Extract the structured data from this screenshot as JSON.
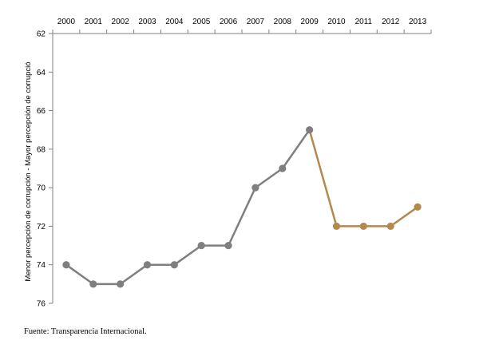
{
  "chart_data": {
    "type": "line",
    "x": [
      "2000",
      "2001",
      "2002",
      "2003",
      "2004",
      "2005",
      "2006",
      "2007",
      "2008",
      "2009",
      "2010",
      "2011",
      "2012",
      "2013"
    ],
    "series": [
      {
        "values": [
          74,
          75,
          75,
          74,
          74,
          73,
          73,
          70,
          69,
          67,
          null,
          null,
          null,
          null
        ],
        "color": "#7f7f7f"
      },
      {
        "values": [
          null,
          null,
          null,
          null,
          null,
          null,
          null,
          null,
          null,
          67,
          72,
          72,
          72,
          71
        ],
        "color": "#b5884e"
      }
    ],
    "ylim": [
      62,
      76
    ],
    "y_ticks": [
      62,
      64,
      66,
      68,
      70,
      72,
      74,
      76
    ],
    "y_inverted": true,
    "x_axis_position": "top",
    "grid": false,
    "ylabel": "Menor percepción de corrupción -    Mayor percepción de corrupció"
  },
  "source_note": "Fuente: Transparencia Internacional."
}
